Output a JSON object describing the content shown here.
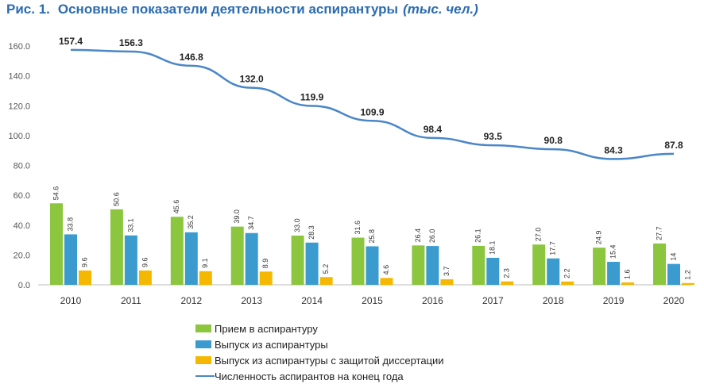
{
  "header": {
    "figure_label": "Рис. 1.",
    "title": "Основные показатели деятельности аспирантуры",
    "unit": "(тыс. чел.)"
  },
  "colors": {
    "title": "#2b6cb0",
    "admission": "#8cc63f",
    "graduation": "#3b9bcf",
    "defense": "#f5b800",
    "total_line": "#4a86c8"
  },
  "chart_data": {
    "type": "bar+line",
    "categories": [
      "2010",
      "2011",
      "2012",
      "2013",
      "2014",
      "2015",
      "2016",
      "2017",
      "2018",
      "2019",
      "2020"
    ],
    "ylim": [
      0,
      160
    ],
    "yticks": [
      "0.0",
      "20.0",
      "40.0",
      "60.0",
      "80.0",
      "100.0",
      "120.0",
      "140.0",
      "160.0"
    ],
    "grid": false,
    "legend_position": "bottom",
    "series": [
      {
        "name": "Прием в аспирантуру",
        "type": "bar",
        "values": [
          54.6,
          50.6,
          45.6,
          39.0,
          33.0,
          31.6,
          26.4,
          26.1,
          27.0,
          24.9,
          27.7
        ],
        "labels": [
          "54.6",
          "50.6",
          "45.6",
          "39.0",
          "33.0",
          "31.6",
          "26.4",
          "26.1",
          "27.0",
          "24.9",
          "27.7"
        ]
      },
      {
        "name": "Выпуск из аспирантуры",
        "type": "bar",
        "values": [
          33.8,
          33.1,
          35.2,
          34.7,
          28.3,
          25.8,
          26.0,
          18.1,
          17.7,
          15.4,
          14
        ],
        "labels": [
          "33.8",
          "33.1",
          "35.2",
          "34.7",
          "28.3",
          "25.8",
          "26.0",
          "18.1",
          "17.7",
          "15.4",
          "14"
        ]
      },
      {
        "name": "Выпуск из аспирантуры с защитой диссертации",
        "type": "bar",
        "values": [
          9.6,
          9.6,
          9.1,
          8.9,
          5.2,
          4.6,
          3.7,
          2.3,
          2.2,
          1.6,
          1.2
        ],
        "labels": [
          "9.6",
          "9.6",
          "9.1",
          "8.9",
          "5.2",
          "4.6",
          "3.7",
          "2.3",
          "2.2",
          "1.6",
          "1.2"
        ]
      },
      {
        "name": "Численность аспирантов на конец года",
        "type": "line",
        "values": [
          157.4,
          156.3,
          146.8,
          132.0,
          119.9,
          109.9,
          98.4,
          93.5,
          90.8,
          84.3,
          87.8
        ],
        "labels": [
          "157.4",
          "156.3",
          "146.8",
          "132.0",
          "119.9",
          "109.9",
          "98.4",
          "93.5",
          "90.8",
          "84.3",
          "87.8"
        ]
      }
    ]
  }
}
